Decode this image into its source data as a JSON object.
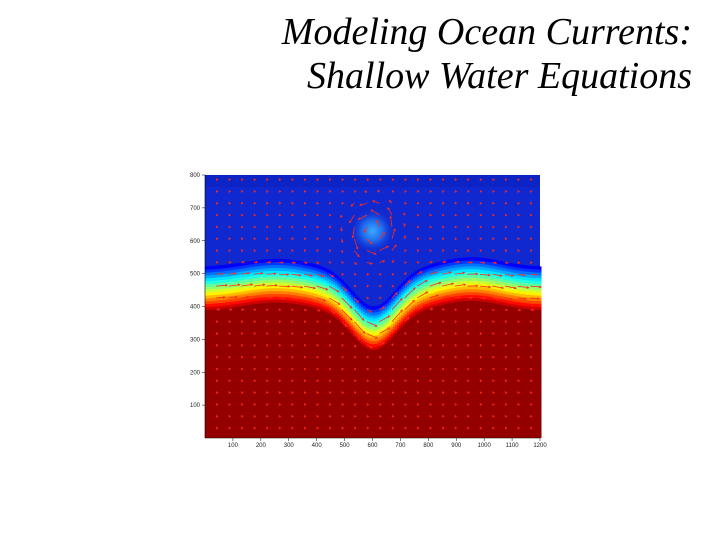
{
  "slide": {
    "title_line1": "Modeling Ocean Currents:",
    "title_line2": "Shallow Water Equations"
  },
  "chart_data": {
    "type": "heatmap",
    "title": "",
    "xlabel": "",
    "ylabel": "",
    "xlim": [
      0,
      1200
    ],
    "ylim": [
      0,
      800
    ],
    "x_ticks": [
      100,
      200,
      300,
      400,
      500,
      600,
      700,
      800,
      900,
      1000,
      1100,
      1200
    ],
    "y_ticks": [
      100,
      200,
      300,
      400,
      500,
      600,
      700,
      800
    ],
    "colormap": "jet",
    "arrow_color": "#ff2a1a",
    "interface": {
      "base_height": 450,
      "trough_x": 600,
      "trough_depth": 120,
      "crest_x": [
        250,
        950
      ]
    },
    "eddy": {
      "x": 600,
      "y": 630,
      "radius": 80
    },
    "grid": false,
    "legend": "none"
  }
}
